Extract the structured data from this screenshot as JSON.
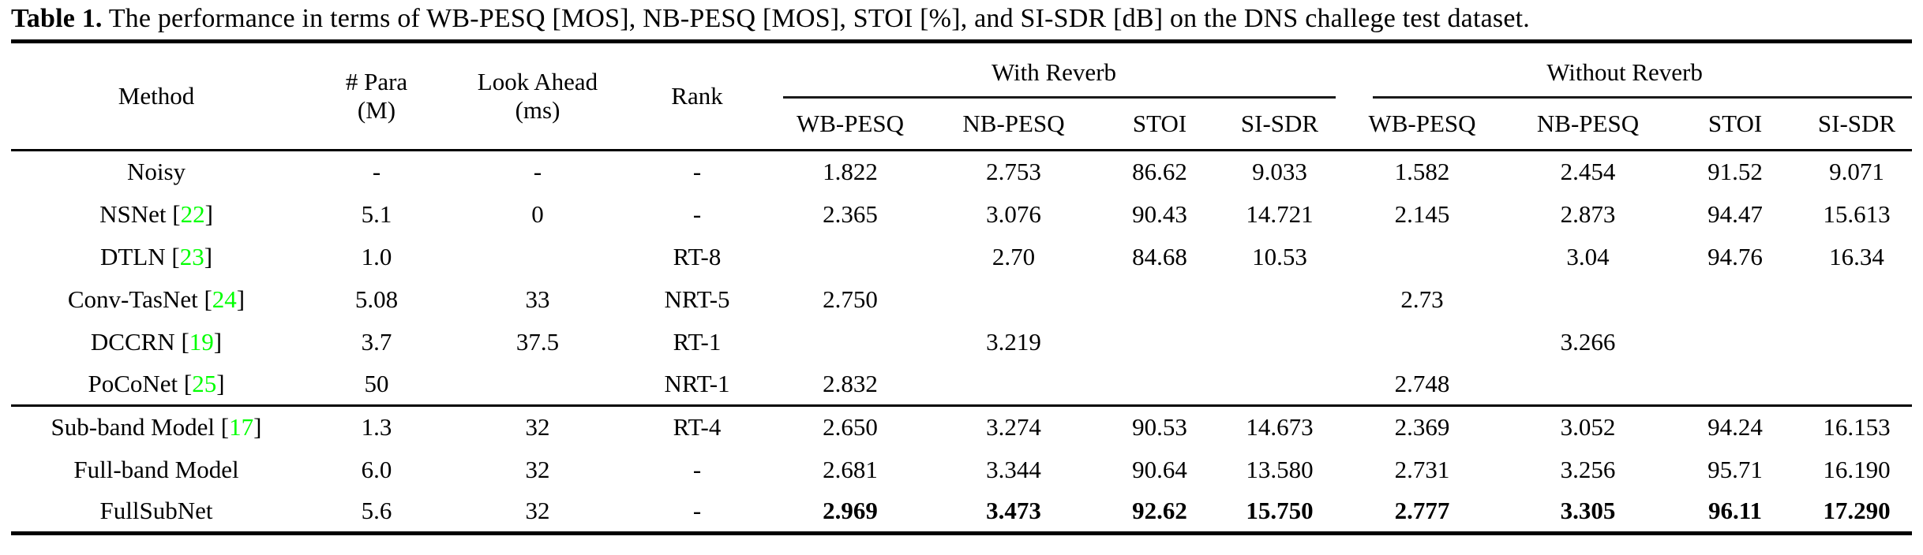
{
  "title": {
    "label": "Table 1.",
    "rest": " The performance in terms of WB-PESQ [MOS], NB-PESQ [MOS], STOI [%], and SI-SDR [dB] on the DNS challege test dataset."
  },
  "table": {
    "columns": {
      "method": "Method",
      "para": [
        "# Para",
        "(M)"
      ],
      "look_ahead": [
        "Look Ahead",
        "(ms)"
      ],
      "rank": "Rank",
      "groups": [
        {
          "label": "With Reverb",
          "metrics": [
            "WB-PESQ",
            "NB-PESQ",
            "STOI",
            "SI-SDR"
          ]
        },
        {
          "label": "Without Reverb",
          "metrics": [
            "WB-PESQ",
            "NB-PESQ",
            "STOI",
            "SI-SDR"
          ]
        }
      ]
    },
    "ref_brackets": [
      "[",
      "]"
    ],
    "ref_color": "#00ff00",
    "rows": [
      {
        "method": "Noisy",
        "ref": null,
        "para": "-",
        "look_ahead": "-",
        "rank": "-",
        "with_reverb": [
          "1.822",
          "2.753",
          "86.62",
          "9.033"
        ],
        "without_reverb": [
          "1.582",
          "2.454",
          "91.52",
          "9.071"
        ],
        "section_start": false,
        "bold_metrics": false
      },
      {
        "method": "NSNet",
        "ref": "22",
        "para": "5.1",
        "look_ahead": "0",
        "rank": "-",
        "with_reverb": [
          "2.365",
          "3.076",
          "90.43",
          "14.721"
        ],
        "without_reverb": [
          "2.145",
          "2.873",
          "94.47",
          "15.613"
        ],
        "section_start": false,
        "bold_metrics": false
      },
      {
        "method": "DTLN",
        "ref": "23",
        "para": "1.0",
        "look_ahead": "",
        "rank": "RT-8",
        "with_reverb": [
          "",
          "2.70",
          "84.68",
          "10.53"
        ],
        "without_reverb": [
          "",
          "3.04",
          "94.76",
          "16.34"
        ],
        "section_start": false,
        "bold_metrics": false
      },
      {
        "method": "Conv-TasNet",
        "ref": "24",
        "para": "5.08",
        "look_ahead": "33",
        "rank": "NRT-5",
        "with_reverb": [
          "2.750",
          "",
          "",
          ""
        ],
        "without_reverb": [
          "2.73",
          "",
          "",
          ""
        ],
        "section_start": false,
        "bold_metrics": false
      },
      {
        "method": "DCCRN",
        "ref": "19",
        "para": "3.7",
        "look_ahead": "37.5",
        "rank": "RT-1",
        "with_reverb": [
          "",
          "3.219",
          "",
          ""
        ],
        "without_reverb": [
          "",
          "3.266",
          "",
          ""
        ],
        "section_start": false,
        "bold_metrics": false
      },
      {
        "method": "PoCoNet",
        "ref": "25",
        "para": "50",
        "look_ahead": "",
        "rank": "NRT-1",
        "with_reverb": [
          "2.832",
          "",
          "",
          ""
        ],
        "without_reverb": [
          "2.748",
          "",
          "",
          ""
        ],
        "section_start": false,
        "bold_metrics": false
      },
      {
        "method": "Sub-band Model",
        "ref": "17",
        "para": "1.3",
        "look_ahead": "32",
        "rank": "RT-4",
        "with_reverb": [
          "2.650",
          "3.274",
          "90.53",
          "14.673"
        ],
        "without_reverb": [
          "2.369",
          "3.052",
          "94.24",
          "16.153"
        ],
        "section_start": true,
        "bold_metrics": false
      },
      {
        "method": "Full-band Model",
        "ref": null,
        "para": "6.0",
        "look_ahead": "32",
        "rank": "-",
        "with_reverb": [
          "2.681",
          "3.344",
          "90.64",
          "13.580"
        ],
        "without_reverb": [
          "2.731",
          "3.256",
          "95.71",
          "16.190"
        ],
        "section_start": false,
        "bold_metrics": false
      },
      {
        "method": "FullSubNet",
        "ref": null,
        "para": "5.6",
        "look_ahead": "32",
        "rank": "-",
        "with_reverb": [
          "2.969",
          "3.473",
          "92.62",
          "15.750"
        ],
        "without_reverb": [
          "2.777",
          "3.305",
          "96.11",
          "17.290"
        ],
        "section_start": false,
        "bold_metrics": true
      }
    ]
  }
}
